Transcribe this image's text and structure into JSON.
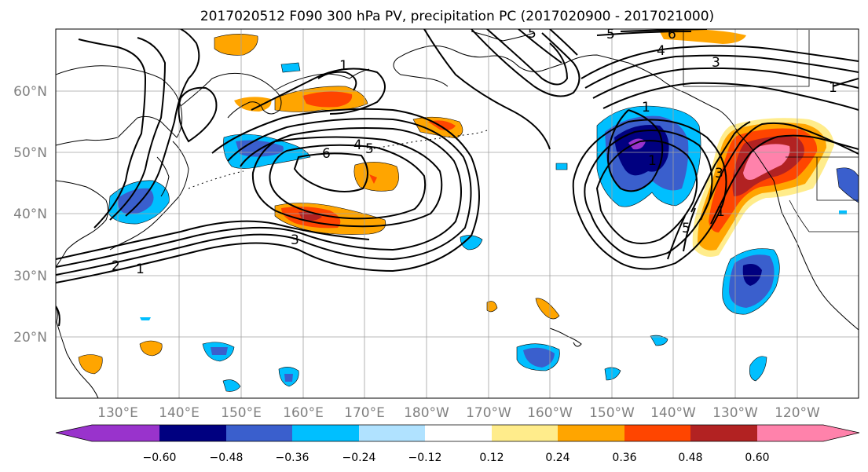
{
  "title": "2017020512 F090 300 hPa PV, precipitation PC (2017020900 - 2017021000)",
  "map": {
    "lat_labels": [
      "60°N",
      "50°N",
      "40°N",
      "30°N",
      "20°N"
    ],
    "lon_labels": [
      "130°E",
      "140°E",
      "150°E",
      "160°E",
      "170°E",
      "180°W",
      "170°W",
      "160°W",
      "150°W",
      "140°W",
      "130°W",
      "120°W"
    ],
    "contour_labels": [
      "1",
      "1",
      "1",
      "1",
      "1",
      "1",
      "3",
      "3",
      "3",
      "4",
      "4",
      "5",
      "5",
      "6",
      "6",
      "2",
      "5",
      "5"
    ]
  },
  "colorbar": {
    "ticks": [
      "−0.60",
      "−0.48",
      "−0.36",
      "−0.24",
      "−0.12",
      "0.12",
      "0.24",
      "0.36",
      "0.48",
      "0.60"
    ],
    "colors": [
      "#9933cc",
      "#000080",
      "#3a5fcd",
      "#00bfff",
      "#b0e2ff",
      "#ffffff",
      "#ffec8b",
      "#ffa500",
      "#ff4500",
      "#b22222",
      "#ff82ab"
    ]
  }
}
